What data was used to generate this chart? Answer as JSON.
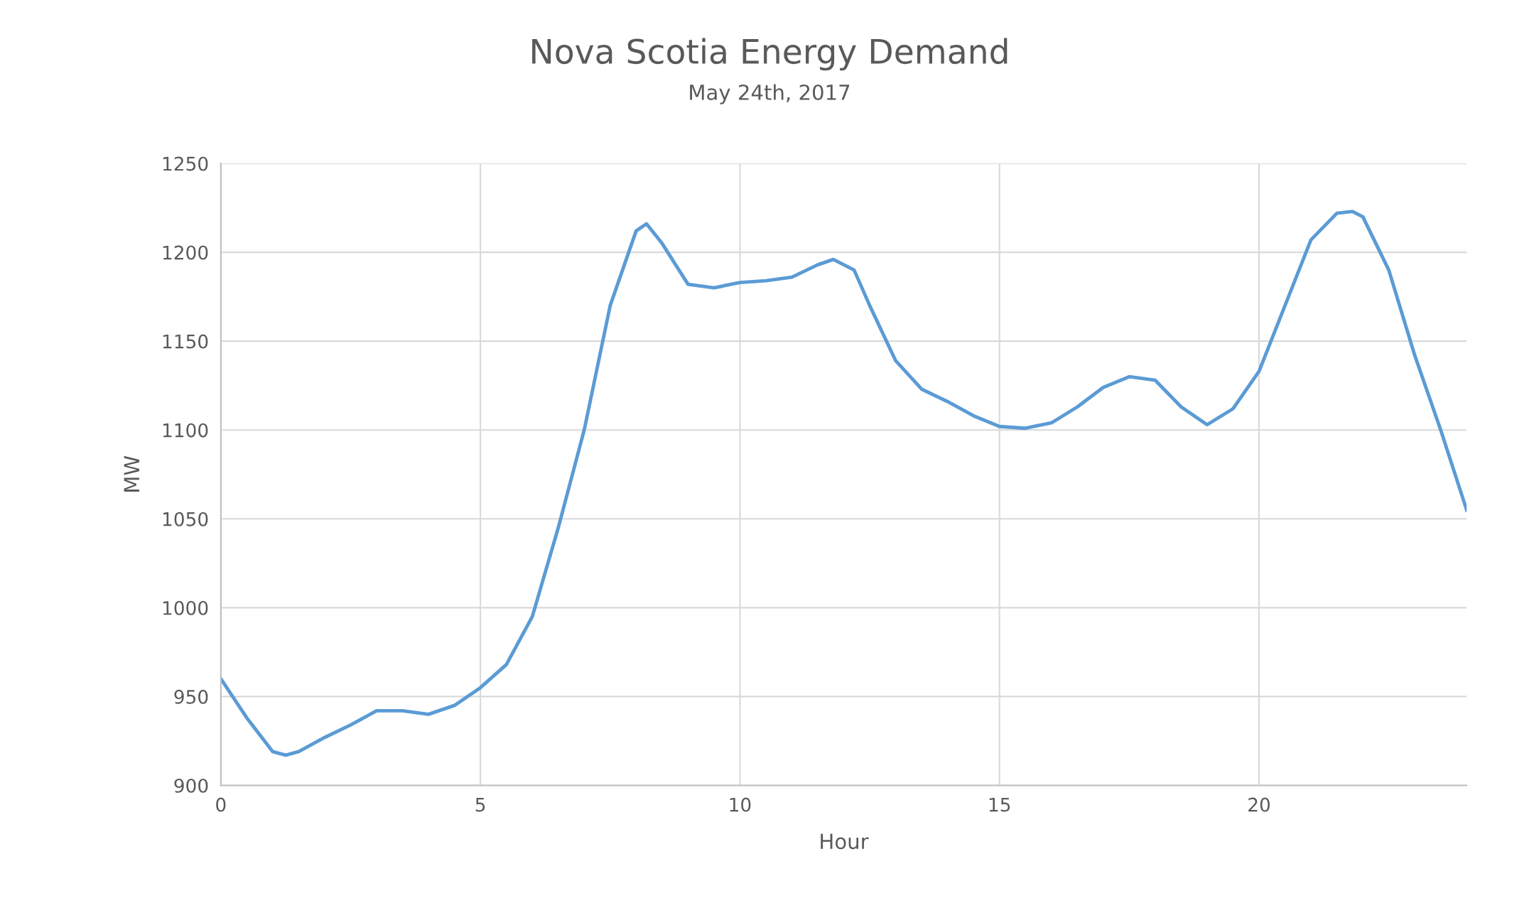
{
  "chart_data": {
    "type": "line",
    "title": "Nova Scotia Energy Demand",
    "subtitle": "May 24th, 2017",
    "xlabel": "Hour",
    "ylabel": "MW",
    "x": [
      0,
      0.5,
      1,
      1.25,
      1.5,
      2,
      2.5,
      3,
      3.5,
      4,
      4.5,
      5,
      5.5,
      6,
      6.5,
      7,
      7.5,
      8,
      8.2,
      8.5,
      9,
      9.5,
      10,
      10.5,
      11,
      11.5,
      11.8,
      12.2,
      12.5,
      13,
      13.5,
      14,
      14.5,
      15,
      15.5,
      16,
      16.5,
      17,
      17.5,
      18,
      18.5,
      19,
      19.5,
      20,
      20.5,
      21,
      21.5,
      21.8,
      22,
      22.5,
      23,
      23.5,
      24
    ],
    "series": [
      {
        "color": "#5b9bd5",
        "values": [
          960,
          938,
          919,
          917,
          919,
          927,
          934,
          942,
          942,
          940,
          945,
          955,
          968,
          995,
          1045,
          1100,
          1170,
          1212,
          1216,
          1205,
          1182,
          1180,
          1183,
          1184,
          1186,
          1193,
          1196,
          1190,
          1170,
          1139,
          1123,
          1116,
          1108,
          1102,
          1101,
          1104,
          1113,
          1124,
          1130,
          1128,
          1113,
          1103,
          1112,
          1133,
          1170,
          1207,
          1222,
          1223,
          1220,
          1190,
          1142,
          1100,
          1055
        ]
      }
    ],
    "xlim": [
      0,
      24
    ],
    "xticks": [
      0,
      5,
      10,
      15,
      20
    ],
    "ylim": [
      900,
      1250
    ],
    "yticks": [
      900,
      950,
      1000,
      1050,
      1100,
      1150,
      1200,
      1250
    ],
    "grid": true,
    "legend": false,
    "marker": "none",
    "line_style": "solid"
  }
}
